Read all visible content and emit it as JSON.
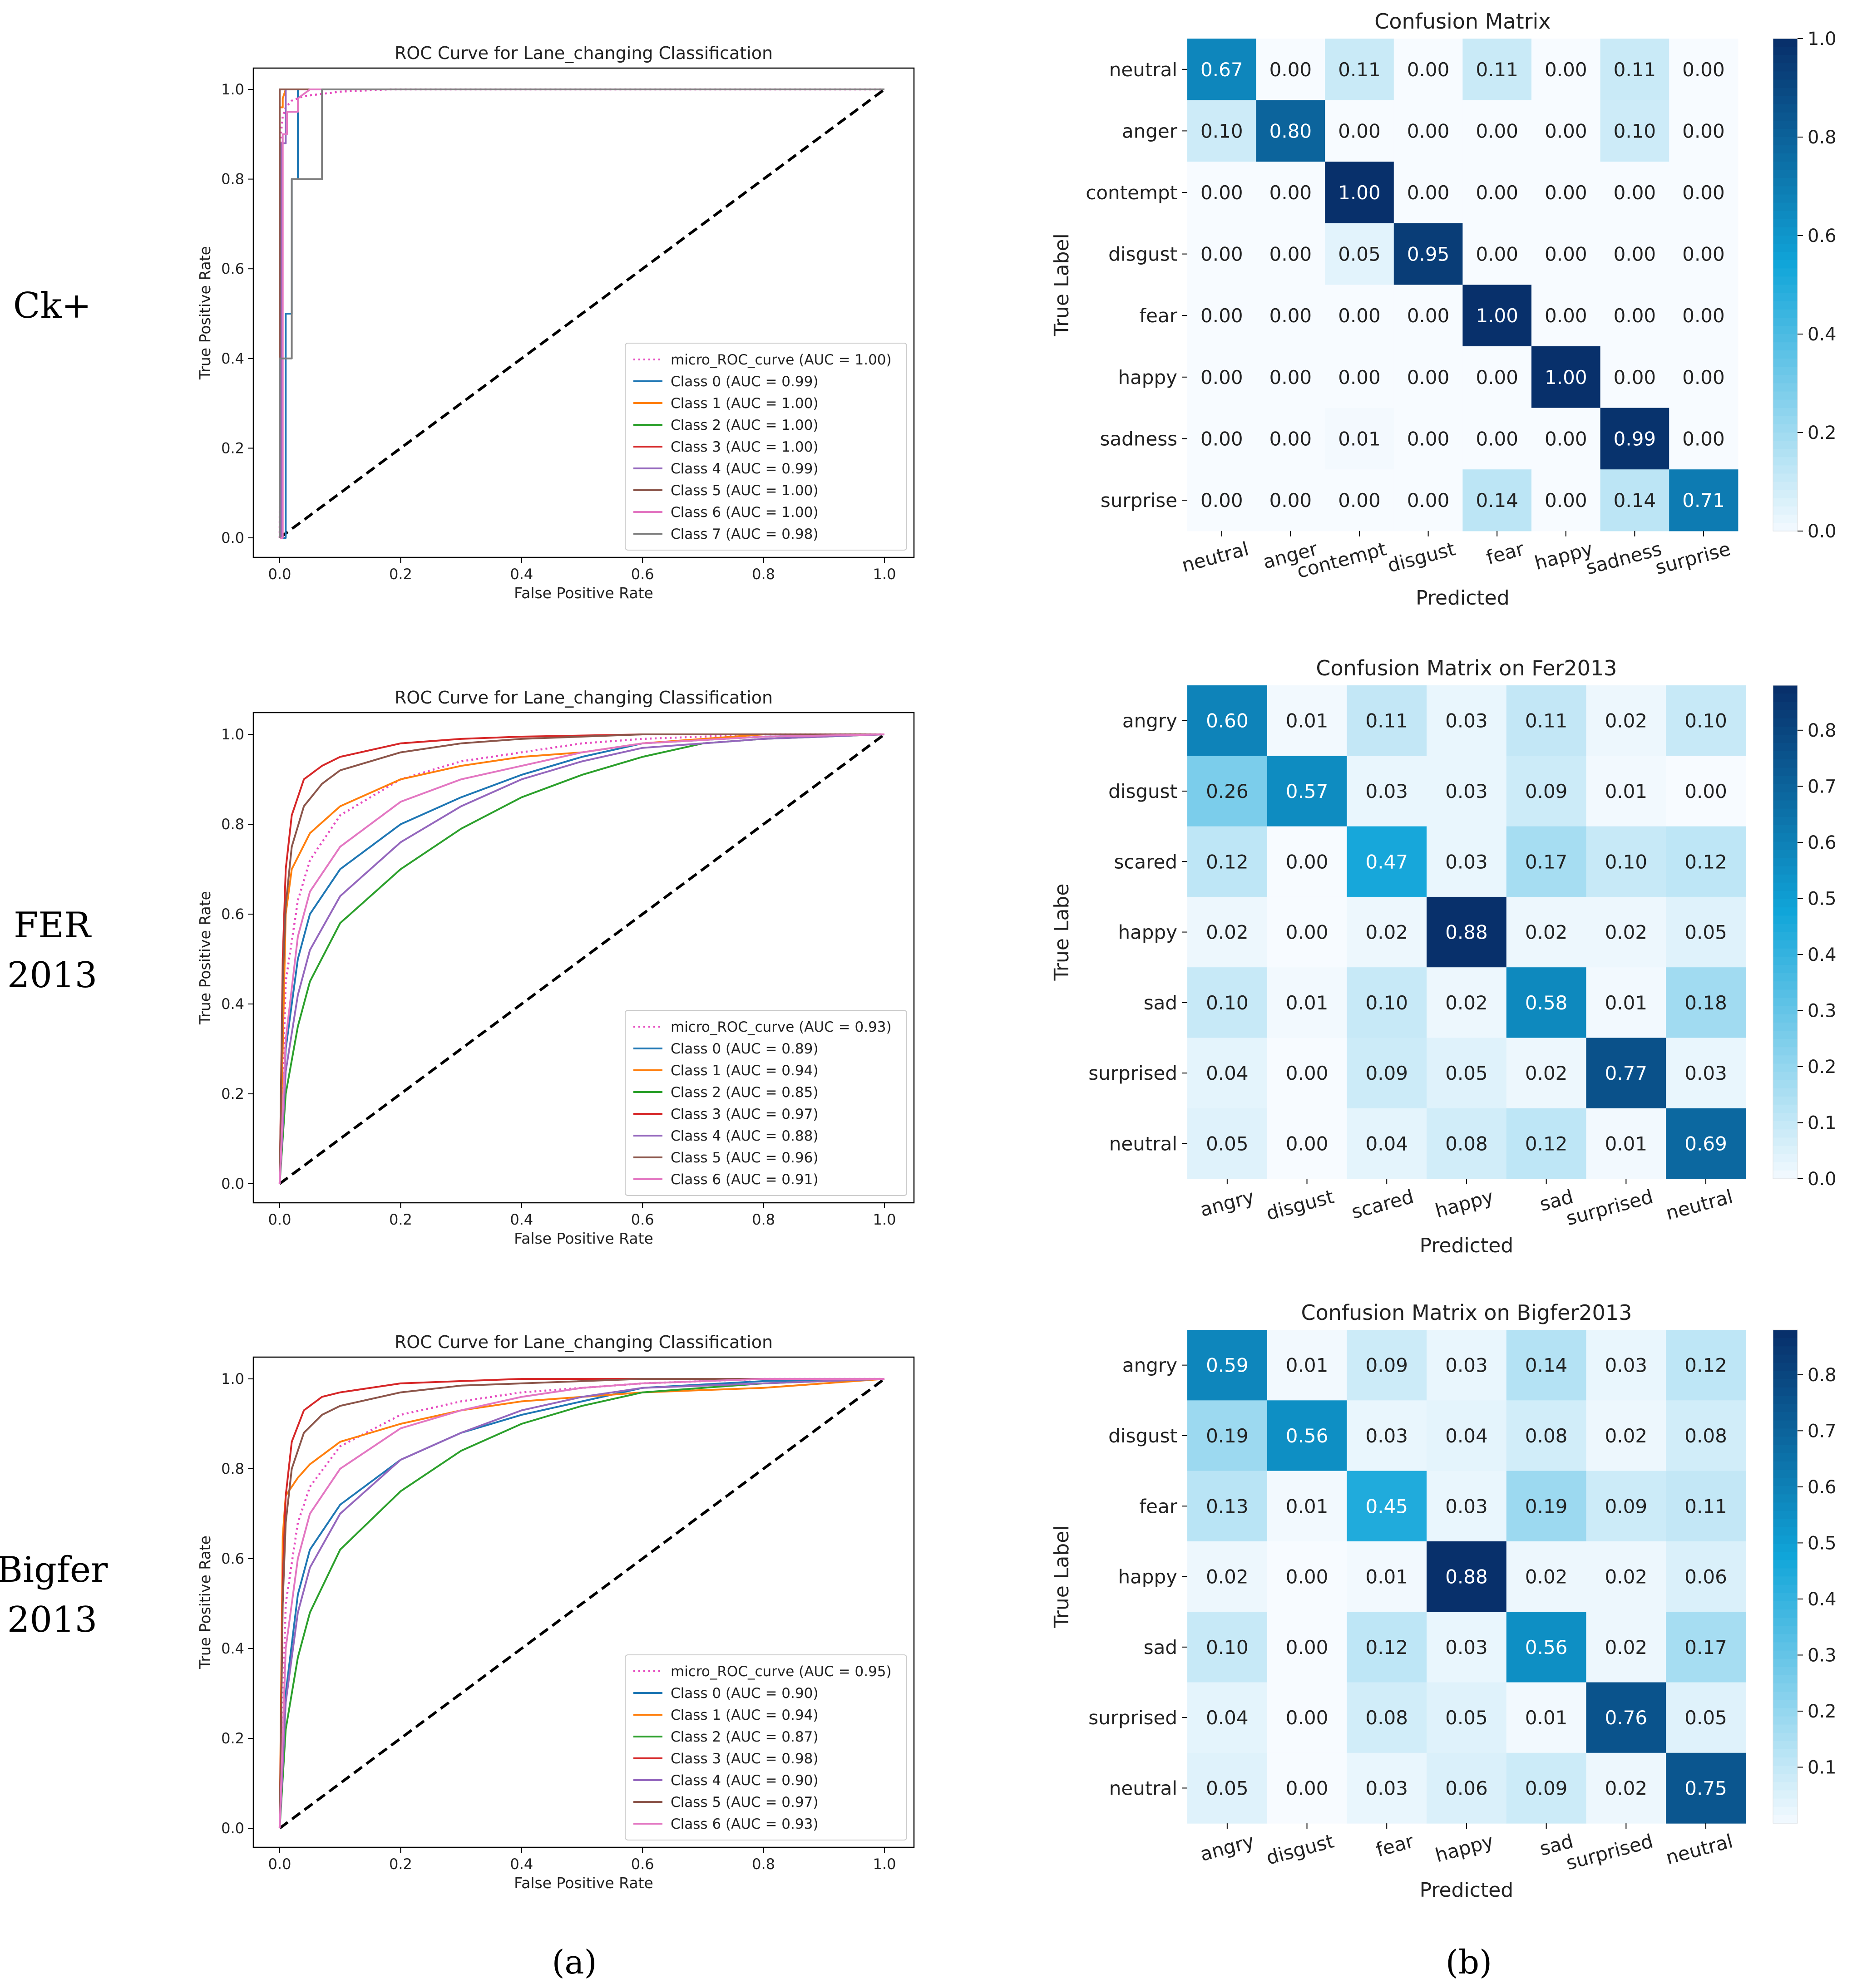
{
  "row_labels": [
    {
      "lines": [
        "Ck+"
      ]
    },
    {
      "lines": [
        "FER",
        "2013"
      ]
    },
    {
      "lines": [
        "Bigfer",
        "2013"
      ]
    }
  ],
  "captions": {
    "a": "(a)",
    "b": "(b)",
    "a_letter": "a",
    "b_letter": "b"
  },
  "colors": {
    "micro": "#e64abf",
    "diag": "#000000",
    "classes": [
      "#1f77b4",
      "#ff7f0e",
      "#2ca02c",
      "#d62728",
      "#9467bd",
      "#8c564b",
      "#e377c2",
      "#7f7f7f"
    ],
    "cmap_low": "#f7fbff",
    "cmap_mid": "#10a5d9",
    "cmap_high": "#08306b"
  },
  "chart_data": [
    {
      "type": "line",
      "title": "ROC Curve for Lane_changing Classification",
      "xlabel": "False Positive Rate",
      "ylabel": "True Positive Rate",
      "xlim": [
        0,
        1
      ],
      "ylim": [
        0,
        1
      ],
      "xticks": [
        "0.0",
        "0.2",
        "0.4",
        "0.6",
        "0.8",
        "1.0"
      ],
      "yticks": [
        "0.0",
        "0.2",
        "0.4",
        "0.6",
        "0.8",
        "1.0"
      ],
      "legend_position": "lower-right",
      "series": [
        {
          "name": "micro_ROC_curve (AUC = 1.00)",
          "style": "dotted",
          "x": [
            0,
            0.002,
            0.005,
            0.01,
            0.02,
            0.04,
            0.07,
            0.1,
            0.18,
            1.0
          ],
          "y": [
            0,
            0.9,
            0.94,
            0.96,
            0.975,
            0.985,
            0.99,
            0.995,
            1.0,
            1.0
          ]
        },
        {
          "name": "Class 0 (AUC = 0.99)",
          "x": [
            0,
            0.01,
            0.01,
            0.02,
            0.02,
            0.03,
            0.03,
            1.0
          ],
          "y": [
            0,
            0,
            0.5,
            0.5,
            0.8,
            0.8,
            1.0,
            1.0
          ]
        },
        {
          "name": "Class 1 (AUC = 1.00)",
          "x": [
            0,
            0,
            0.005,
            0.005,
            0.01,
            1.0
          ],
          "y": [
            0,
            0.96,
            0.96,
            0.98,
            1.0,
            1.0
          ]
        },
        {
          "name": "Class 2 (AUC = 1.00)",
          "x": [
            0,
            0,
            1.0
          ],
          "y": [
            0,
            1.0,
            1.0
          ]
        },
        {
          "name": "Class 3 (AUC = 1.00)",
          "x": [
            0,
            0,
            1.0
          ],
          "y": [
            0,
            1.0,
            1.0
          ]
        },
        {
          "name": "Class 4 (AUC = 0.99)",
          "x": [
            0,
            0.003,
            0.003,
            0.01,
            0.01,
            1.0
          ],
          "y": [
            0,
            0,
            0.88,
            0.88,
            1.0,
            1.0
          ]
        },
        {
          "name": "Class 5 (AUC = 1.00)",
          "x": [
            0,
            0,
            1.0
          ],
          "y": [
            0,
            1.0,
            1.0
          ]
        },
        {
          "name": "Class 6 (AUC = 1.00)",
          "x": [
            0,
            0.005,
            0.005,
            0.012,
            0.012,
            0.03,
            0.03,
            0.05,
            1.0
          ],
          "y": [
            0,
            0,
            0.9,
            0.9,
            0.95,
            0.95,
            0.98,
            1.0,
            1.0
          ]
        },
        {
          "name": "Class 7 (AUC = 0.98)",
          "x": [
            0,
            0,
            0.02,
            0.02,
            0.07,
            0.07,
            1.0
          ],
          "y": [
            0,
            0.4,
            0.4,
            0.8,
            0.8,
            1.0,
            1.0
          ]
        }
      ]
    },
    {
      "type": "line",
      "title": "ROC Curve for Lane_changing Classification",
      "xlabel": "False Positive Rate",
      "ylabel": "True Positive Rate",
      "xlim": [
        0,
        1
      ],
      "ylim": [
        0,
        1.05
      ],
      "xticks": [
        "0.0",
        "0.2",
        "0.4",
        "0.6",
        "0.8",
        "1.0"
      ],
      "yticks": [
        "0.0",
        "0.2",
        "0.4",
        "0.6",
        "0.8",
        "1.0"
      ],
      "legend_position": "lower-right",
      "series": [
        {
          "name": "micro_ROC_curve (AUC = 0.93)",
          "style": "dotted",
          "x": [
            0,
            0.01,
            0.03,
            0.05,
            0.1,
            0.2,
            0.3,
            0.4,
            0.5,
            0.6,
            0.8,
            1.0
          ],
          "y": [
            0,
            0.45,
            0.63,
            0.72,
            0.82,
            0.9,
            0.94,
            0.96,
            0.98,
            0.99,
            1.0,
            1.0
          ]
        },
        {
          "name": "Class 0 (AUC = 0.89)",
          "x": [
            0,
            0.01,
            0.03,
            0.05,
            0.1,
            0.2,
            0.3,
            0.4,
            0.5,
            0.6,
            0.8,
            1.0
          ],
          "y": [
            0,
            0.3,
            0.5,
            0.6,
            0.7,
            0.8,
            0.86,
            0.91,
            0.95,
            0.98,
            0.995,
            1.0
          ]
        },
        {
          "name": "Class 1 (AUC = 0.94)",
          "x": [
            0,
            0.01,
            0.02,
            0.05,
            0.1,
            0.15,
            0.2,
            0.3,
            0.4,
            0.5,
            0.6,
            0.8,
            1.0
          ],
          "y": [
            0,
            0.6,
            0.7,
            0.78,
            0.84,
            0.87,
            0.9,
            0.93,
            0.95,
            0.96,
            0.98,
            1.0,
            1.0
          ]
        },
        {
          "name": "Class 2 (AUC = 0.85)",
          "x": [
            0,
            0.01,
            0.03,
            0.05,
            0.1,
            0.2,
            0.3,
            0.4,
            0.5,
            0.6,
            0.7,
            0.8,
            1.0
          ],
          "y": [
            0,
            0.2,
            0.35,
            0.45,
            0.58,
            0.7,
            0.79,
            0.86,
            0.91,
            0.95,
            0.98,
            0.99,
            1.0
          ]
        },
        {
          "name": "Class 3 (AUC = 0.97)",
          "x": [
            0,
            0.005,
            0.01,
            0.02,
            0.04,
            0.07,
            0.1,
            0.2,
            0.3,
            0.4,
            0.6,
            1.0
          ],
          "y": [
            0,
            0.5,
            0.7,
            0.82,
            0.9,
            0.93,
            0.95,
            0.98,
            0.99,
            0.995,
            1.0,
            1.0
          ]
        },
        {
          "name": "Class 4 (AUC = 0.88)",
          "x": [
            0,
            0.01,
            0.03,
            0.05,
            0.1,
            0.2,
            0.3,
            0.4,
            0.5,
            0.6,
            0.8,
            1.0
          ],
          "y": [
            0,
            0.25,
            0.42,
            0.52,
            0.64,
            0.76,
            0.84,
            0.9,
            0.94,
            0.97,
            0.99,
            1.0
          ]
        },
        {
          "name": "Class 5 (AUC = 0.96)",
          "x": [
            0,
            0.005,
            0.01,
            0.02,
            0.04,
            0.07,
            0.1,
            0.2,
            0.3,
            0.4,
            0.6,
            1.0
          ],
          "y": [
            0,
            0.45,
            0.62,
            0.75,
            0.84,
            0.89,
            0.92,
            0.96,
            0.98,
            0.99,
            1.0,
            1.0
          ]
        },
        {
          "name": "Class 6 (AUC = 0.91)",
          "x": [
            0,
            0.01,
            0.03,
            0.05,
            0.1,
            0.2,
            0.3,
            0.4,
            0.5,
            0.6,
            0.8,
            1.0
          ],
          "y": [
            0,
            0.32,
            0.55,
            0.65,
            0.75,
            0.85,
            0.9,
            0.93,
            0.96,
            0.98,
            0.995,
            1.0
          ]
        }
      ]
    },
    {
      "type": "line",
      "title": "ROC Curve for Lane_changing Classification",
      "xlabel": "False Positive Rate",
      "ylabel": "True Positive Rate",
      "xlim": [
        0,
        1
      ],
      "ylim": [
        0,
        1.05
      ],
      "xticks": [
        "0.0",
        "0.2",
        "0.4",
        "0.6",
        "0.8",
        "1.0"
      ],
      "yticks": [
        "0.0",
        "0.2",
        "0.4",
        "0.6",
        "0.8",
        "1.0"
      ],
      "legend_position": "lower-right",
      "series": [
        {
          "name": "micro_ROC_curve (AUC = 0.95)",
          "style": "dotted",
          "x": [
            0,
            0.01,
            0.03,
            0.05,
            0.1,
            0.2,
            0.3,
            0.4,
            0.5,
            0.6,
            0.8,
            1.0
          ],
          "y": [
            0,
            0.5,
            0.68,
            0.76,
            0.85,
            0.92,
            0.95,
            0.97,
            0.98,
            0.99,
            1.0,
            1.0
          ]
        },
        {
          "name": "Class 0 (AUC = 0.90)",
          "x": [
            0,
            0.01,
            0.03,
            0.05,
            0.1,
            0.2,
            0.3,
            0.4,
            0.5,
            0.6,
            0.8,
            1.0
          ],
          "y": [
            0,
            0.3,
            0.52,
            0.62,
            0.72,
            0.82,
            0.88,
            0.92,
            0.95,
            0.98,
            0.995,
            1.0
          ]
        },
        {
          "name": "Class 1 (AUC = 0.94)",
          "x": [
            0,
            0.005,
            0.01,
            0.03,
            0.05,
            0.1,
            0.2,
            0.3,
            0.4,
            0.5,
            0.6,
            0.8,
            0.9,
            1.0
          ],
          "y": [
            0,
            0.65,
            0.74,
            0.78,
            0.81,
            0.86,
            0.9,
            0.93,
            0.95,
            0.96,
            0.97,
            0.98,
            0.99,
            1.0
          ]
        },
        {
          "name": "Class 2 (AUC = 0.87)",
          "x": [
            0,
            0.01,
            0.03,
            0.05,
            0.1,
            0.2,
            0.3,
            0.4,
            0.5,
            0.6,
            0.7,
            0.8,
            1.0
          ],
          "y": [
            0,
            0.22,
            0.38,
            0.48,
            0.62,
            0.75,
            0.84,
            0.9,
            0.94,
            0.97,
            0.98,
            0.99,
            1.0
          ]
        },
        {
          "name": "Class 3 (AUC = 0.98)",
          "x": [
            0,
            0.005,
            0.01,
            0.02,
            0.04,
            0.07,
            0.1,
            0.2,
            0.3,
            0.4,
            0.6,
            1.0
          ],
          "y": [
            0,
            0.55,
            0.74,
            0.86,
            0.93,
            0.96,
            0.97,
            0.99,
            0.995,
            1.0,
            1.0,
            1.0
          ]
        },
        {
          "name": "Class 4 (AUC = 0.90)",
          "x": [
            0,
            0.01,
            0.03,
            0.05,
            0.1,
            0.2,
            0.3,
            0.4,
            0.5,
            0.6,
            0.8,
            1.0
          ],
          "y": [
            0,
            0.28,
            0.48,
            0.58,
            0.7,
            0.82,
            0.88,
            0.93,
            0.96,
            0.98,
            0.99,
            1.0
          ]
        },
        {
          "name": "Class 5 (AUC = 0.97)",
          "x": [
            0,
            0.005,
            0.01,
            0.02,
            0.04,
            0.07,
            0.1,
            0.2,
            0.3,
            0.4,
            0.6,
            1.0
          ],
          "y": [
            0,
            0.5,
            0.68,
            0.8,
            0.88,
            0.92,
            0.94,
            0.97,
            0.985,
            0.99,
            1.0,
            1.0
          ]
        },
        {
          "name": "Class 6 (AUC = 0.93)",
          "x": [
            0,
            0.01,
            0.03,
            0.05,
            0.1,
            0.2,
            0.3,
            0.4,
            0.5,
            0.6,
            0.8,
            1.0
          ],
          "y": [
            0,
            0.4,
            0.6,
            0.7,
            0.8,
            0.89,
            0.93,
            0.96,
            0.98,
            0.99,
            1.0,
            1.0
          ]
        }
      ]
    },
    {
      "type": "heatmap",
      "title": "Confusion Matrix",
      "xlabel": "Predicted",
      "ylabel": "True Label",
      "rows": [
        "neutral",
        "anger",
        "contempt",
        "disgust",
        "fear",
        "happy",
        "sadness",
        "surprise"
      ],
      "cols": [
        "neutral",
        "anger",
        "contempt",
        "disgust",
        "fear",
        "happy",
        "sadness",
        "surprise"
      ],
      "values": [
        [
          0.67,
          0.0,
          0.11,
          0.0,
          0.11,
          0.0,
          0.11,
          0.0
        ],
        [
          0.1,
          0.8,
          0.0,
          0.0,
          0.0,
          0.0,
          0.1,
          0.0
        ],
        [
          0.0,
          0.0,
          1.0,
          0.0,
          0.0,
          0.0,
          0.0,
          0.0
        ],
        [
          0.0,
          0.0,
          0.05,
          0.95,
          0.0,
          0.0,
          0.0,
          0.0
        ],
        [
          0.0,
          0.0,
          0.0,
          0.0,
          1.0,
          0.0,
          0.0,
          0.0
        ],
        [
          0.0,
          0.0,
          0.0,
          0.0,
          0.0,
          1.0,
          0.0,
          0.0
        ],
        [
          0.0,
          0.0,
          0.01,
          0.0,
          0.0,
          0.0,
          0.99,
          0.0
        ],
        [
          0.0,
          0.0,
          0.0,
          0.0,
          0.14,
          0.0,
          0.14,
          0.71
        ]
      ],
      "vmin": 0.0,
      "vmax": 1.0,
      "colorbar_ticks": [
        "0.0",
        "0.2",
        "0.4",
        "0.6",
        "0.8",
        "1.0"
      ]
    },
    {
      "type": "heatmap",
      "title": "Confusion Matrix on Fer2013",
      "xlabel": "Predicted",
      "ylabel": "True Labe",
      "rows": [
        "angry",
        "disgust",
        "scared",
        "happy",
        "sad",
        "surprised",
        "neutral"
      ],
      "cols": [
        "angry",
        "disgust",
        "scared",
        "happy",
        "sad",
        "surprised",
        "neutral"
      ],
      "values": [
        [
          0.6,
          0.01,
          0.11,
          0.03,
          0.11,
          0.02,
          0.1
        ],
        [
          0.26,
          0.57,
          0.03,
          0.03,
          0.09,
          0.01,
          0.0
        ],
        [
          0.12,
          0.0,
          0.47,
          0.03,
          0.17,
          0.1,
          0.12
        ],
        [
          0.02,
          0.0,
          0.02,
          0.88,
          0.02,
          0.02,
          0.05
        ],
        [
          0.1,
          0.01,
          0.1,
          0.02,
          0.58,
          0.01,
          0.18
        ],
        [
          0.04,
          0.0,
          0.09,
          0.05,
          0.02,
          0.77,
          0.03
        ],
        [
          0.05,
          0.0,
          0.04,
          0.08,
          0.12,
          0.01,
          0.69
        ]
      ],
      "vmin": 0.0,
      "vmax": 0.88,
      "colorbar_ticks": [
        "0.0",
        "0.1",
        "0.2",
        "0.3",
        "0.4",
        "0.5",
        "0.6",
        "0.7",
        "0.8"
      ]
    },
    {
      "type": "heatmap",
      "title": "Confusion Matrix on Bigfer2013",
      "xlabel": "Predicted",
      "ylabel": "True Label",
      "rows": [
        "angry",
        "disgust",
        "fear",
        "happy",
        "sad",
        "surprised",
        "neutral"
      ],
      "cols": [
        "angry",
        "disgust",
        "fear",
        "happy",
        "sad",
        "surprised",
        "neutral"
      ],
      "values": [
        [
          0.59,
          0.01,
          0.09,
          0.03,
          0.14,
          0.03,
          0.12
        ],
        [
          0.19,
          0.56,
          0.03,
          0.04,
          0.08,
          0.02,
          0.08
        ],
        [
          0.13,
          0.01,
          0.45,
          0.03,
          0.19,
          0.09,
          0.11
        ],
        [
          0.02,
          0.0,
          0.01,
          0.88,
          0.02,
          0.02,
          0.06
        ],
        [
          0.1,
          0.0,
          0.12,
          0.03,
          0.56,
          0.02,
          0.17
        ],
        [
          0.04,
          0.0,
          0.08,
          0.05,
          0.01,
          0.76,
          0.05
        ],
        [
          0.05,
          0.0,
          0.03,
          0.06,
          0.09,
          0.02,
          0.75
        ]
      ],
      "vmin": 0.0,
      "vmax": 0.88,
      "colorbar_ticks": [
        "0.1",
        "0.2",
        "0.3",
        "0.4",
        "0.5",
        "0.6",
        "0.7",
        "0.8"
      ]
    }
  ]
}
